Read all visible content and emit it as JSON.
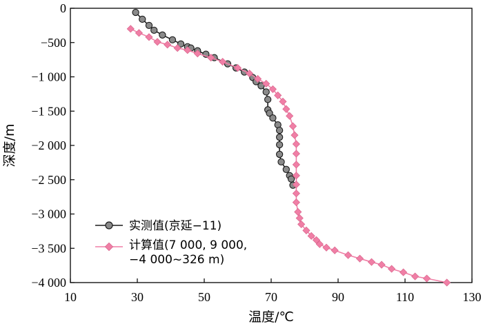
{
  "chart_data": {
    "type": "line",
    "xlabel": "温度/℃",
    "ylabel": "深度/m",
    "xlim": [
      10,
      130
    ],
    "ylim": [
      -4000,
      0
    ],
    "xticks": [
      10,
      30,
      50,
      70,
      90,
      110,
      130
    ],
    "xtick_labels": [
      "10",
      "30",
      "50",
      "70",
      "90",
      "110",
      "130"
    ],
    "yticks": [
      0,
      -500,
      -1000,
      -1500,
      -2000,
      -2500,
      -3000,
      -3500,
      -4000
    ],
    "ytick_labels": [
      "0",
      "−500",
      "−1 000",
      "−1 500",
      "−2 000",
      "−2 500",
      "−3 000",
      "−3 500",
      "−4 000"
    ],
    "grid": false,
    "legend_position": "lower-left",
    "series": [
      {
        "name": "实测值(京延−11)",
        "color": "#1a1a1a",
        "marker_color": "#8a8a8a",
        "marker": "circle",
        "points": [
          [
            29.5,
            -60
          ],
          [
            31.5,
            -160
          ],
          [
            33.5,
            -250
          ],
          [
            35,
            -320
          ],
          [
            37.5,
            -390
          ],
          [
            40.5,
            -460
          ],
          [
            43,
            -520
          ],
          [
            45,
            -560
          ],
          [
            46,
            -580
          ],
          [
            48,
            -620
          ],
          [
            50.5,
            -670
          ],
          [
            53,
            -720
          ],
          [
            57,
            -810
          ],
          [
            59.5,
            -870
          ],
          [
            62,
            -930
          ],
          [
            64.5,
            -1010
          ],
          [
            65.5,
            -1070
          ],
          [
            67,
            -1130
          ],
          [
            68.5,
            -1220
          ],
          [
            69,
            -1330
          ],
          [
            69,
            -1480
          ],
          [
            69.5,
            -1530
          ],
          [
            70.5,
            -1600
          ],
          [
            72,
            -1700
          ],
          [
            72.5,
            -1780
          ],
          [
            72.5,
            -1880
          ],
          [
            72.5,
            -1990
          ],
          [
            72.5,
            -2130
          ],
          [
            73,
            -2240
          ],
          [
            74.5,
            -2350
          ],
          [
            75.5,
            -2440
          ],
          [
            76,
            -2490
          ],
          [
            76.5,
            -2580
          ]
        ]
      },
      {
        "name": "计算值(7 000, 9 000, −4 000~326 m)",
        "color": "#f07fa6",
        "marker_color": "#f07fa6",
        "marker": "diamond",
        "points": [
          [
            28,
            -300
          ],
          [
            30.5,
            -360
          ],
          [
            33.5,
            -420
          ],
          [
            36,
            -490
          ],
          [
            39,
            -530
          ],
          [
            42,
            -580
          ],
          [
            45,
            -610
          ],
          [
            48,
            -660
          ],
          [
            52,
            -720
          ],
          [
            55.5,
            -780
          ],
          [
            60,
            -870
          ],
          [
            63.5,
            -950
          ],
          [
            66,
            -1030
          ],
          [
            68.5,
            -1100
          ],
          [
            70.5,
            -1180
          ],
          [
            72,
            -1270
          ],
          [
            73.5,
            -1360
          ],
          [
            74.5,
            -1470
          ],
          [
            75.5,
            -1570
          ],
          [
            76.5,
            -1720
          ],
          [
            77,
            -1850
          ],
          [
            77.5,
            -1980
          ],
          [
            77.5,
            -2120
          ],
          [
            77.5,
            -2280
          ],
          [
            77.5,
            -2440
          ],
          [
            77.5,
            -2570
          ],
          [
            77.5,
            -2700
          ],
          [
            77.5,
            -2830
          ],
          [
            78,
            -2970
          ],
          [
            78.5,
            -3060
          ],
          [
            79,
            -3150
          ],
          [
            80.5,
            -3240
          ],
          [
            82,
            -3320
          ],
          [
            83.5,
            -3380
          ],
          [
            84.5,
            -3440
          ],
          [
            86.5,
            -3490
          ],
          [
            89,
            -3530
          ],
          [
            93,
            -3600
          ],
          [
            96.5,
            -3650
          ],
          [
            100,
            -3700
          ],
          [
            103,
            -3740
          ],
          [
            106,
            -3800
          ],
          [
            109.5,
            -3850
          ],
          [
            113,
            -3910
          ],
          [
            116.5,
            -3940
          ],
          [
            122.5,
            -4000
          ]
        ]
      }
    ]
  }
}
